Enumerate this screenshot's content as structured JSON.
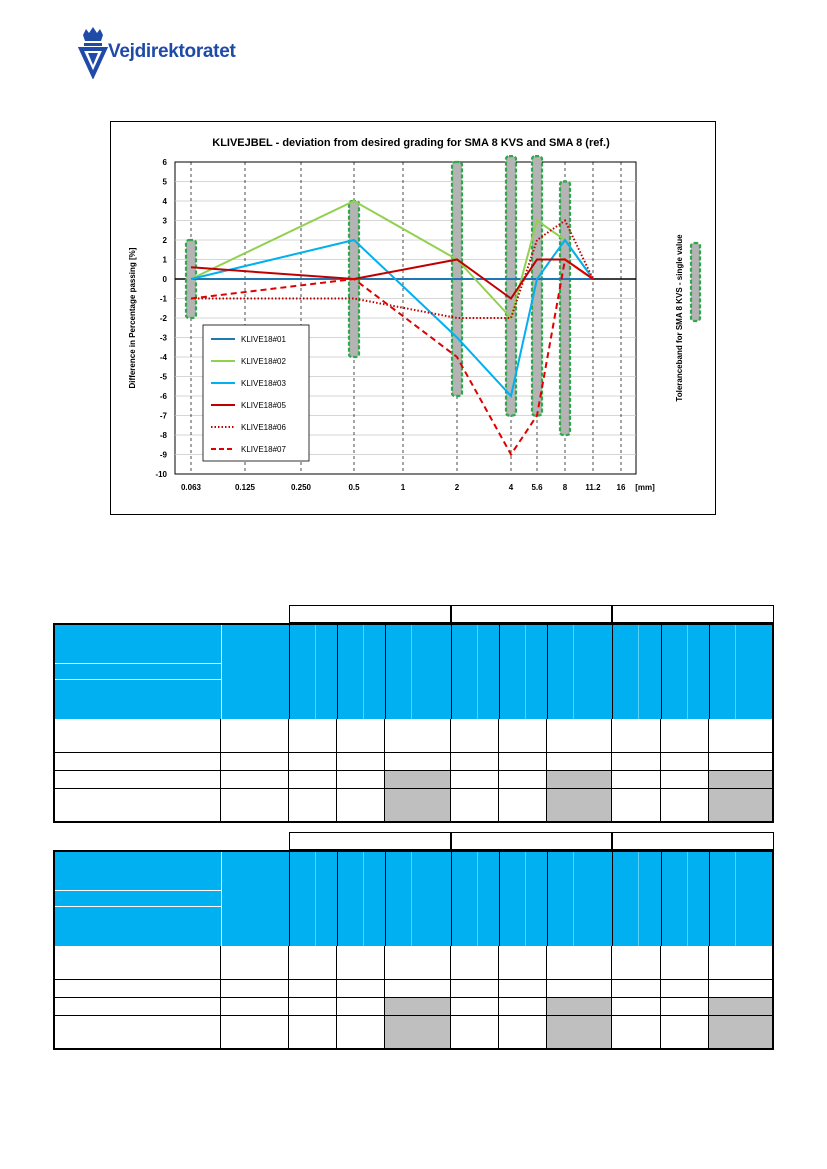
{
  "header": {
    "logo_text": "Vejdirektoratet"
  },
  "chart_data": {
    "type": "line",
    "title": "KLIVEJBEL  - deviation from desired grading for SMA 8 KVS and SMA 8 (ref.)",
    "ylabel": "Difference in Percentage passing  [%]",
    "xlabel_unit": "[mm]",
    "categories": [
      "0.063",
      "0.125",
      "0.250",
      "0.5",
      "1",
      "2",
      "4",
      "5.6",
      "8",
      "11.2",
      "16"
    ],
    "ylim": [
      -10,
      6
    ],
    "yticks": [
      6,
      5,
      4,
      3,
      2,
      1,
      0,
      -1,
      -2,
      -3,
      -4,
      -5,
      -6,
      -7,
      -8,
      -9,
      -10
    ],
    "series": [
      {
        "name": "KLIVE18#01",
        "color": "#1f77b4",
        "style": "solid",
        "x": [
          "0.063",
          "0.5",
          "2",
          "4",
          "5.6",
          "8",
          "11.2"
        ],
        "values": [
          0,
          0,
          0,
          0,
          0,
          0,
          0
        ]
      },
      {
        "name": "KLIVE18#02",
        "color": "#92d050",
        "style": "solid",
        "x": [
          "0.063",
          "0.5",
          "2",
          "4",
          "5.6",
          "8",
          "11.2"
        ],
        "values": [
          0,
          4,
          1,
          -2,
          3,
          2,
          0
        ]
      },
      {
        "name": "KLIVE18#03",
        "color": "#00b0f0",
        "style": "solid",
        "x": [
          "0.063",
          "0.5",
          "2",
          "4",
          "5.6",
          "8",
          "11.2"
        ],
        "values": [
          0,
          2,
          -3,
          -6,
          0,
          2,
          0
        ]
      },
      {
        "name": "KLIVE18#05",
        "color": "#c00000",
        "style": "solid",
        "x": [
          "0.063",
          "0.5",
          "2",
          "4",
          "5.6",
          "8",
          "11.2"
        ],
        "values": [
          0.6,
          0,
          1,
          -1,
          1,
          1,
          0
        ]
      },
      {
        "name": "KLIVE18#06",
        "color": "#c00000",
        "style": "dotted",
        "x": [
          "0.063",
          "0.5",
          "2",
          "4",
          "5.6",
          "8",
          "11.2"
        ],
        "values": [
          -1,
          -1,
          -2,
          -2,
          2,
          3,
          0
        ]
      },
      {
        "name": "KLIVE18#07",
        "color": "#e00000",
        "style": "dashed",
        "x": [
          "0.063",
          "0.5",
          "2",
          "4",
          "5.6",
          "8",
          "11.2"
        ],
        "values": [
          -1,
          0,
          -4,
          -9,
          -7,
          1,
          0
        ]
      }
    ],
    "tolerance_band": {
      "name": "Toleranceband for SMA 8 KVS - single value",
      "bands": [
        {
          "x": "0.063",
          "low": -2,
          "high": 2
        },
        {
          "x": "0.5",
          "low": -4,
          "high": 4
        },
        {
          "x": "2",
          "low": -6,
          "high": 6
        },
        {
          "x": "4",
          "low": -7,
          "high": 6.3
        },
        {
          "x": "5.6",
          "low": -7,
          "high": 6.3
        },
        {
          "x": "8",
          "low": -8,
          "high": 5
        }
      ]
    },
    "legend_position": "lower-left",
    "grid": true
  }
}
